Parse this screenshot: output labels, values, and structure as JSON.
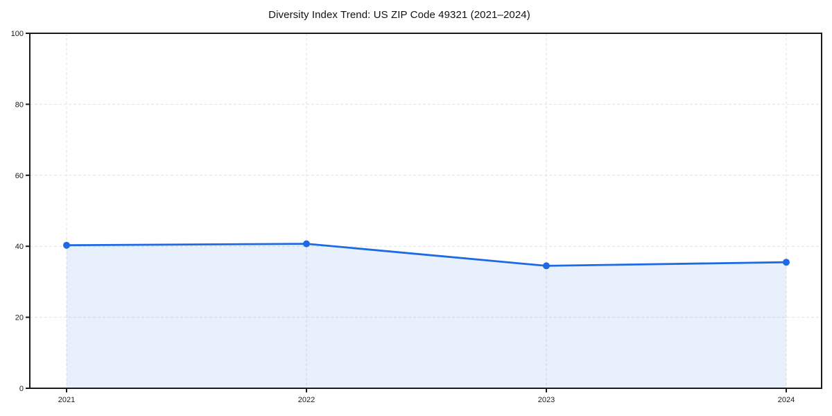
{
  "chart_data": {
    "type": "area",
    "title": "Diversity Index Trend: US ZIP Code 49321 (2021–2024)",
    "categories": [
      "2021",
      "2022",
      "2023",
      "2024"
    ],
    "series": [
      {
        "name": "Diversity Index",
        "values": [
          40.3,
          40.7,
          34.5,
          35.5
        ]
      }
    ],
    "xlabel": "",
    "ylabel": "",
    "ylim": [
      0,
      100
    ],
    "y_ticks": [
      0,
      20,
      40,
      60,
      80,
      100
    ],
    "y_tick_labels": [
      "0",
      "20",
      "40",
      "60",
      "80",
      "100"
    ],
    "grid": true,
    "grid_style": "dashed",
    "legend": false,
    "colors": {
      "line": "#1e6ae4",
      "marker": "#1e6ae4",
      "fill": "#1e6ae4",
      "fill_opacity": "0.10",
      "grid": "#e1e1e1",
      "spine": "#1a1a1a",
      "tick_label": "#1a1a1a",
      "title": "#111111",
      "background": "#ffffff"
    }
  }
}
